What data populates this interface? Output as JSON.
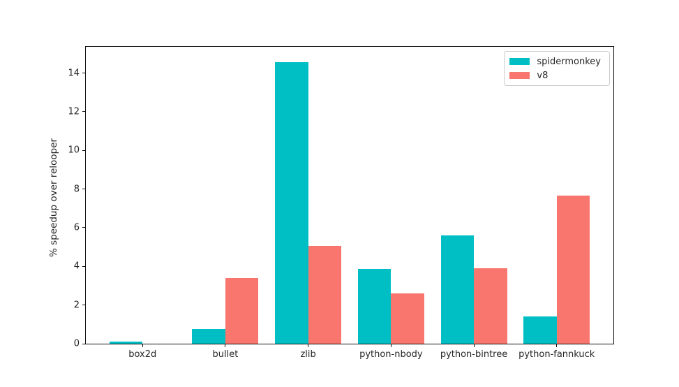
{
  "chart_data": {
    "type": "bar",
    "title": "",
    "xlabel": "",
    "ylabel": "% speedup over relooper",
    "categories": [
      "box2d",
      "bullet",
      "zlib",
      "python-nbody",
      "python-bintree",
      "python-fannkuck"
    ],
    "series": [
      {
        "name": "spidermonkey",
        "color": "#00BFC4",
        "values": [
          0.1,
          0.75,
          14.55,
          3.85,
          5.6,
          1.4
        ]
      },
      {
        "name": "v8",
        "color": "#F8766D",
        "values": [
          0.0,
          3.4,
          5.05,
          2.6,
          3.9,
          7.65
        ]
      }
    ],
    "yticks": [
      0,
      2,
      4,
      6,
      8,
      10,
      12,
      14
    ],
    "ylim": [
      0,
      15.36
    ],
    "grid": false,
    "legend_position": "upper right",
    "background_color": "#ffffff",
    "axis_color": "#111111"
  }
}
